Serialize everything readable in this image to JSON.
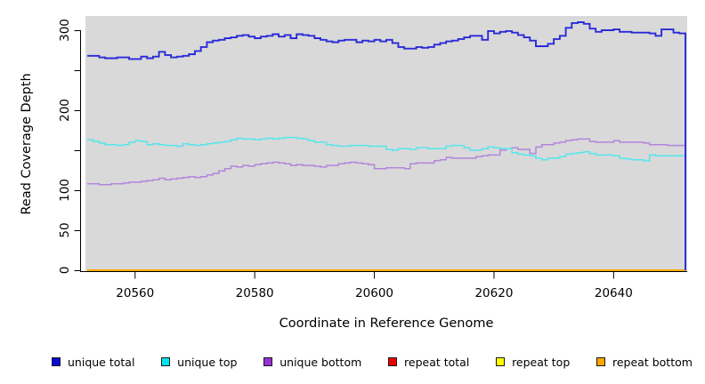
{
  "figure": {
    "xlabel": "Coordinate in Reference Genome",
    "ylabel": "Read Coverage Depth",
    "panel_bg": "#d9d9d9",
    "axis_color": "#000000",
    "x_ticks": [
      {
        "value": 20560,
        "label": "20560"
      },
      {
        "value": 20580,
        "label": "20580"
      },
      {
        "value": 20600,
        "label": "20600"
      },
      {
        "value": 20620,
        "label": "20620"
      },
      {
        "value": 20640,
        "label": "20640"
      }
    ],
    "y_ticks": [
      {
        "value": 0,
        "label": "0"
      },
      {
        "value": 50,
        "label": "50"
      },
      {
        "value": 100,
        "label": "100"
      },
      {
        "value": 150,
        "label": ""
      },
      {
        "value": 200,
        "label": "200"
      },
      {
        "value": 250,
        "label": ""
      },
      {
        "value": 300,
        "label": "300"
      }
    ]
  },
  "chart_data": {
    "type": "line",
    "step": "after",
    "title": "",
    "xlabel": "Coordinate in Reference Genome",
    "ylabel": "Read Coverage Depth",
    "xlim": [
      20552,
      20652
    ],
    "ylim": [
      0,
      310
    ],
    "x_start": 20552,
    "x_step": 1,
    "n_points": 100,
    "grid": false,
    "legend_position": "bottom",
    "series": [
      {
        "name": "unique total",
        "color": "#0a0ad8",
        "line_color": "#2a2ad8",
        "drop_to_zero_at_end": true,
        "values": [
          268,
          268,
          266,
          265,
          265,
          266,
          266,
          264,
          264,
          267,
          265,
          267,
          273,
          269,
          266,
          267,
          268,
          270,
          274,
          279,
          285,
          287,
          288,
          290,
          291,
          293,
          294,
          292,
          290,
          292,
          293,
          295,
          292,
          294,
          290,
          295,
          294,
          293,
          290,
          288,
          286,
          285,
          287,
          288,
          288,
          285,
          287,
          286,
          288,
          286,
          288,
          284,
          279,
          277,
          277,
          279,
          278,
          279,
          282,
          284,
          286,
          287,
          289,
          291,
          293,
          293,
          288,
          299,
          296,
          298,
          299,
          297,
          294,
          291,
          287,
          280,
          280,
          283,
          289,
          293,
          303,
          309,
          310,
          308,
          302,
          298,
          300,
          300,
          301,
          298,
          298,
          297,
          297,
          297,
          296,
          293,
          301,
          301,
          297,
          296
        ]
      },
      {
        "name": "unique top",
        "color": "#00e4ee",
        "line_color": "#55e6ec",
        "values": [
          163,
          161,
          159,
          157,
          157,
          156,
          157,
          160,
          162,
          161,
          157,
          158,
          157,
          156,
          156,
          155,
          158,
          157,
          156,
          157,
          158,
          159,
          160,
          161,
          163,
          165,
          164,
          164,
          163,
          164,
          165,
          164,
          165,
          166,
          166,
          165,
          164,
          162,
          160,
          160,
          157,
          156,
          155,
          155,
          156,
          156,
          156,
          155,
          155,
          155,
          151,
          150,
          152,
          152,
          151,
          153,
          153,
          152,
          152,
          152,
          155,
          156,
          156,
          153,
          150,
          150,
          152,
          154,
          153,
          152,
          152,
          147,
          145,
          144,
          143,
          140,
          138,
          140,
          140,
          142,
          145,
          146,
          147,
          148,
          146,
          144,
          144,
          144,
          143,
          140,
          139,
          138,
          138,
          137,
          144,
          143,
          143,
          143,
          143,
          143
        ]
      },
      {
        "name": "unique bottom",
        "color": "#9a2fd4",
        "line_color": "#b286dc",
        "values": [
          108,
          108,
          107,
          107,
          108,
          108,
          109,
          110,
          110,
          111,
          112,
          113,
          115,
          113,
          114,
          115,
          116,
          117,
          116,
          117,
          119,
          121,
          124,
          127,
          130,
          129,
          131,
          130,
          132,
          133,
          134,
          135,
          134,
          133,
          131,
          132,
          131,
          131,
          130,
          129,
          131,
          131,
          133,
          134,
          135,
          134,
          133,
          132,
          127,
          127,
          128,
          128,
          128,
          127,
          133,
          134,
          134,
          134,
          137,
          138,
          141,
          140,
          140,
          140,
          140,
          142,
          143,
          144,
          144,
          150,
          152,
          153,
          151,
          151,
          146,
          154,
          157,
          157,
          159,
          160,
          162,
          163,
          164,
          164,
          161,
          160,
          160,
          160,
          162,
          160,
          160,
          160,
          160,
          159,
          157,
          157,
          157,
          156,
          156,
          156
        ]
      },
      {
        "name": "repeat total",
        "color": "#ee0000",
        "line_color": "#ee0000",
        "constant": 0
      },
      {
        "name": "repeat top",
        "color": "#ffff00",
        "line_color": "#ffff00",
        "constant": 0
      },
      {
        "name": "repeat bottom",
        "color": "#ffa500",
        "line_color": "#ffa500",
        "constant": 0
      }
    ]
  }
}
